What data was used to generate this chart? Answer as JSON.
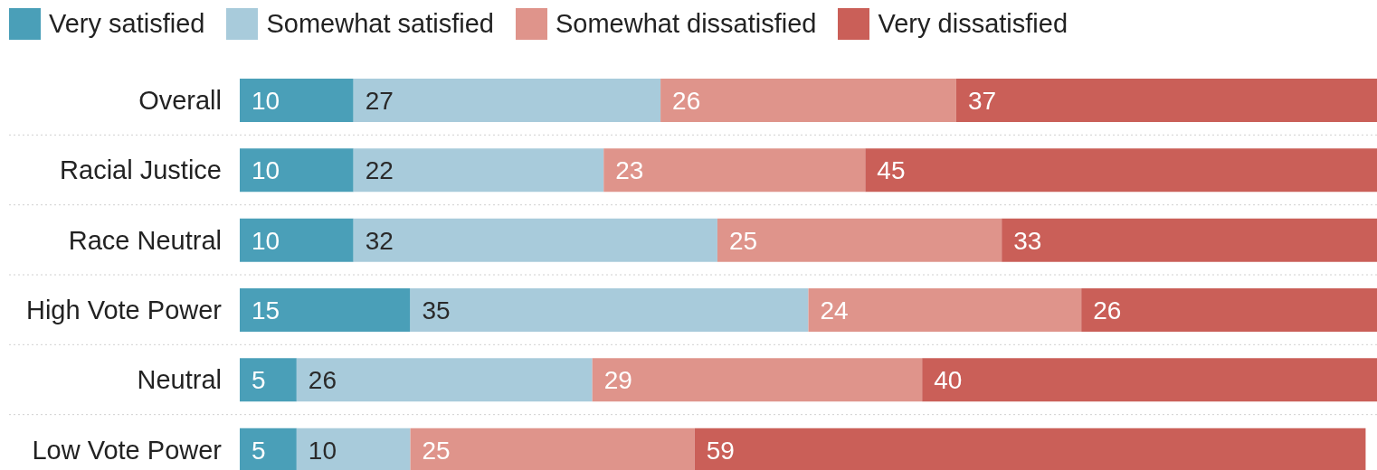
{
  "chart_data": {
    "type": "bar",
    "orientation": "horizontal",
    "stacked": true,
    "categories": [
      "Overall",
      "Racial Justice",
      "Race Neutral",
      "High Vote Power",
      "Neutral",
      "Low Vote Power"
    ],
    "series": [
      {
        "name": "Very satisfied",
        "color": "#4a9fb8",
        "values": [
          10,
          10,
          10,
          15,
          5,
          5
        ]
      },
      {
        "name": "Somewhat satisfied",
        "color": "#a8cbdb",
        "values": [
          27,
          22,
          32,
          35,
          26,
          10
        ]
      },
      {
        "name": "Somewhat dissatisfied",
        "color": "#df948b",
        "values": [
          26,
          23,
          25,
          24,
          29,
          25
        ]
      },
      {
        "name": "Very dissatisfied",
        "color": "#ca5f58",
        "values": [
          37,
          45,
          33,
          26,
          40,
          59
        ]
      }
    ],
    "data_labels": true,
    "legend": "top left",
    "grid": "y",
    "tick_labels": "y"
  }
}
